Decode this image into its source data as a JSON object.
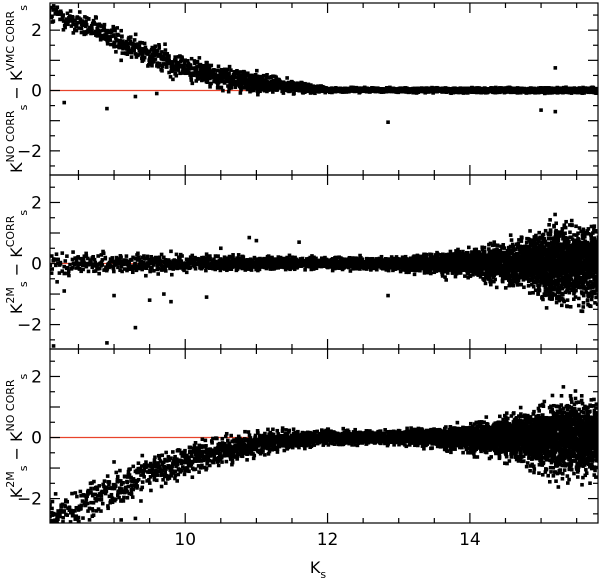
{
  "chart_data": {
    "type": "scatter",
    "layout": "three vertically stacked panels sharing one x axis",
    "xlabel": "K_s",
    "xlim": [
      8.1,
      15.8
    ],
    "x_ticks": [
      10,
      12,
      14
    ],
    "grid": false,
    "marker": "filled black square",
    "reference_line": {
      "y": 0,
      "color": "#e8432b",
      "x_end": 10.9
    },
    "panels": [
      {
        "id": "top",
        "ylabel": {
          "base": "K",
          "sub": "s",
          "sup": "NO CORR",
          "op": "−",
          "base2": "K",
          "sub2": "s",
          "sup2": "VMC CORR"
        },
        "ylim": [
          -2.8,
          2.9
        ],
        "y_ticks": [
          -2,
          0,
          2
        ],
        "trend": {
          "x": [
            8.2,
            8.5,
            9.0,
            9.5,
            10.0,
            10.5,
            11.0,
            11.5,
            12.0,
            15.8
          ],
          "y": [
            2.5,
            2.2,
            1.75,
            1.2,
            0.75,
            0.45,
            0.25,
            0.12,
            0.02,
            0.0
          ]
        },
        "scatter_width": {
          "x": [
            8.2,
            10,
            11,
            12,
            15.8
          ],
          "w": [
            0.2,
            0.2,
            0.15,
            0.03,
            0.04
          ]
        },
        "density": {
          "x": [
            8.1,
            10,
            11,
            12,
            15.8
          ],
          "n": [
            3,
            5,
            9,
            11,
            12
          ]
        },
        "outliers": [
          {
            "x": 8.3,
            "y": -0.4
          },
          {
            "x": 8.9,
            "y": -0.6
          },
          {
            "x": 9.3,
            "y": -0.2
          },
          {
            "x": 9.6,
            "y": -0.1
          },
          {
            "x": 12.85,
            "y": -1.05
          },
          {
            "x": 15.0,
            "y": -0.65
          },
          {
            "x": 15.2,
            "y": -0.7
          },
          {
            "x": 15.2,
            "y": 0.75
          },
          {
            "x": 9.1,
            "y": 1.0
          },
          {
            "x": 10.6,
            "y": 0.15
          }
        ]
      },
      {
        "id": "middle",
        "ylabel": {
          "base": "K",
          "sub": "s",
          "sup": "2M",
          "op": "−",
          "base2": "K",
          "sub2": "s",
          "sup2": "CORR"
        },
        "ylim": [
          -2.8,
          2.9
        ],
        "y_ticks": [
          -2,
          0,
          2
        ],
        "trend": {
          "x": [
            8.1,
            15.8
          ],
          "y": [
            0.0,
            0.0
          ]
        },
        "scatter_width": {
          "x": [
            8.1,
            10,
            12,
            13,
            14,
            14.8,
            15.2,
            15.8
          ],
          "w": [
            0.18,
            0.12,
            0.08,
            0.1,
            0.2,
            0.35,
            0.55,
            0.55
          ]
        },
        "density": {
          "x": [
            8.1,
            10,
            12,
            14,
            15,
            15.8
          ],
          "n": [
            2,
            5,
            10,
            18,
            32,
            30
          ]
        },
        "outliers": [
          {
            "x": 8.15,
            "y": -2.7
          },
          {
            "x": 8.9,
            "y": -2.6
          },
          {
            "x": 9.3,
            "y": -2.1
          },
          {
            "x": 9.0,
            "y": -1.05
          },
          {
            "x": 9.5,
            "y": -1.2
          },
          {
            "x": 9.8,
            "y": -1.25
          },
          {
            "x": 9.7,
            "y": -1.0
          },
          {
            "x": 10.3,
            "y": -1.1
          },
          {
            "x": 12.85,
            "y": -1.05
          },
          {
            "x": 8.2,
            "y": -0.6
          },
          {
            "x": 8.3,
            "y": -0.9
          },
          {
            "x": 10.9,
            "y": 0.85
          },
          {
            "x": 11.0,
            "y": 0.75
          },
          {
            "x": 11.6,
            "y": 0.7
          },
          {
            "x": 10.5,
            "y": 0.5
          },
          {
            "x": 9.8,
            "y": 0.4
          }
        ]
      },
      {
        "id": "bottom",
        "ylabel": {
          "base": "K",
          "sub": "s",
          "sup": "2M",
          "op": "−",
          "base2": "K",
          "sub2": "s",
          "sup2": "NO CORR"
        },
        "ylim": [
          -2.8,
          2.9
        ],
        "y_ticks": [
          -2,
          0,
          2
        ],
        "trend": {
          "x": [
            8.2,
            8.6,
            9.0,
            9.5,
            10.0,
            10.5,
            11.0,
            11.5,
            12.0,
            15.8
          ],
          "y": [
            -2.5,
            -2.2,
            -1.7,
            -1.2,
            -0.75,
            -0.45,
            -0.2,
            -0.08,
            0.0,
            0.0
          ]
        },
        "scatter_width": {
          "x": [
            8.2,
            10,
            11,
            12,
            13,
            14,
            14.8,
            15.2,
            15.8
          ],
          "w": [
            0.3,
            0.25,
            0.18,
            0.1,
            0.1,
            0.2,
            0.35,
            0.55,
            0.5
          ]
        },
        "density": {
          "x": [
            8.1,
            10,
            11,
            12,
            14,
            15,
            15.8
          ],
          "n": [
            3,
            5,
            9,
            10,
            18,
            32,
            30
          ]
        },
        "outliers": [
          {
            "x": 8.2,
            "y": -2.8
          },
          {
            "x": 8.5,
            "y": -2.75
          },
          {
            "x": 9.1,
            "y": -2.7
          },
          {
            "x": 9.3,
            "y": -2.65
          },
          {
            "x": 8.1,
            "y": -2.2
          },
          {
            "x": 8.7,
            "y": -1.9
          },
          {
            "x": 9.2,
            "y": -1.6
          },
          {
            "x": 9.6,
            "y": -1.4
          },
          {
            "x": 10.1,
            "y": -1.3
          },
          {
            "x": 10.3,
            "y": -1.0
          },
          {
            "x": 9.0,
            "y": -0.8
          },
          {
            "x": 15.1,
            "y": -1.25
          },
          {
            "x": 15.3,
            "y": -1.35
          },
          {
            "x": 15.2,
            "y": 0.6
          },
          {
            "x": 14.2,
            "y": 0.5
          }
        ]
      }
    ]
  }
}
